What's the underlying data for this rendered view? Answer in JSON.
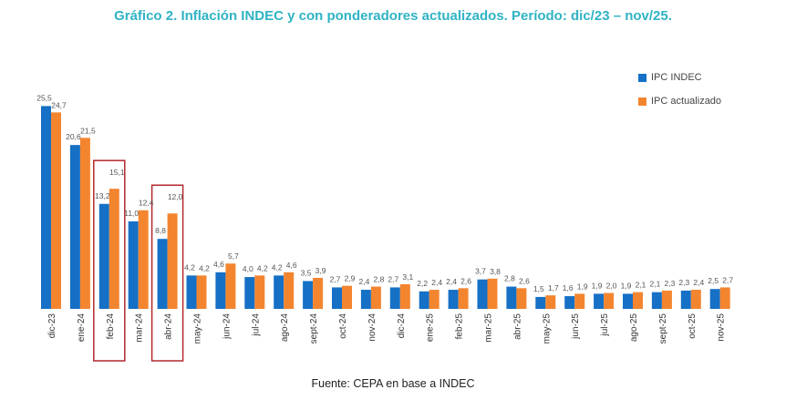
{
  "title": "Gráfico 2. Inflación INDEC y con ponderadores actualizados. Período: dic/23 – nov/25.",
  "source": "Fuente: CEPA en base a INDEC",
  "colors": {
    "ipc_indec": "#1570c6",
    "ipc_actualizado": "#f4852f",
    "highlight": "#b3282d"
  },
  "chart_data": {
    "type": "bar",
    "title": "Gráfico 2. Inflación INDEC y con ponderadores actualizados. Período: dic/23 – nov/25.",
    "xlabel": "",
    "ylabel": "",
    "ylim": [
      0,
      27
    ],
    "grid": false,
    "legend": "top-right",
    "categories": [
      "dic-23",
      "ene-24",
      "feb-24",
      "mar-24",
      "abr-24",
      "may-24",
      "jun-24",
      "jul-24",
      "ago-24",
      "sept-24",
      "oct-24",
      "nov-24",
      "dic-24",
      "ene-25",
      "feb-25",
      "mar-25",
      "abr-25",
      "may-25",
      "jun-25",
      "jul-25",
      "ago-25",
      "sept-25",
      "oct-25",
      "nov-25"
    ],
    "series": [
      {
        "name": "IPC INDEC",
        "values": [
          25.5,
          20.6,
          13.2,
          11.0,
          8.8,
          4.2,
          4.6,
          4.0,
          4.2,
          3.5,
          2.7,
          2.4,
          2.7,
          2.2,
          2.4,
          3.7,
          2.8,
          1.5,
          1.6,
          1.9,
          1.9,
          2.1,
          2.3,
          2.5
        ],
        "labels": [
          "25,5",
          "20,6",
          "13,2",
          "11,0",
          "8,8",
          "4,2",
          "4,6",
          "4,0",
          "4,2",
          "3,5",
          "2,7",
          "2,4",
          "2,7",
          "2,2",
          "2,4",
          "3,7",
          "2,8",
          "1,5",
          "1,6",
          "1,9",
          "1,9",
          "2,1",
          "2,3",
          "2,5"
        ]
      },
      {
        "name": "IPC actualizado",
        "values": [
          24.7,
          21.5,
          15.1,
          12.4,
          12.0,
          4.2,
          5.7,
          4.2,
          4.6,
          3.9,
          2.9,
          2.8,
          3.1,
          2.4,
          2.6,
          3.8,
          2.6,
          1.7,
          1.9,
          2.0,
          2.1,
          2.3,
          2.4,
          2.7
        ],
        "labels": [
          "24,7",
          "21,5",
          "15,1",
          "12,4",
          "12,0",
          "4,2",
          "5,7",
          "4,2",
          "4,6",
          "3,9",
          "2,9",
          "2,8",
          "3,1",
          "2,4",
          "2,6",
          "3,8",
          "2,6",
          "1,7",
          "1,9",
          "2,0",
          "2,1",
          "2,3",
          "2,4",
          "2,7"
        ]
      }
    ],
    "highlighted_categories": [
      "feb-24",
      "abr-24"
    ]
  }
}
